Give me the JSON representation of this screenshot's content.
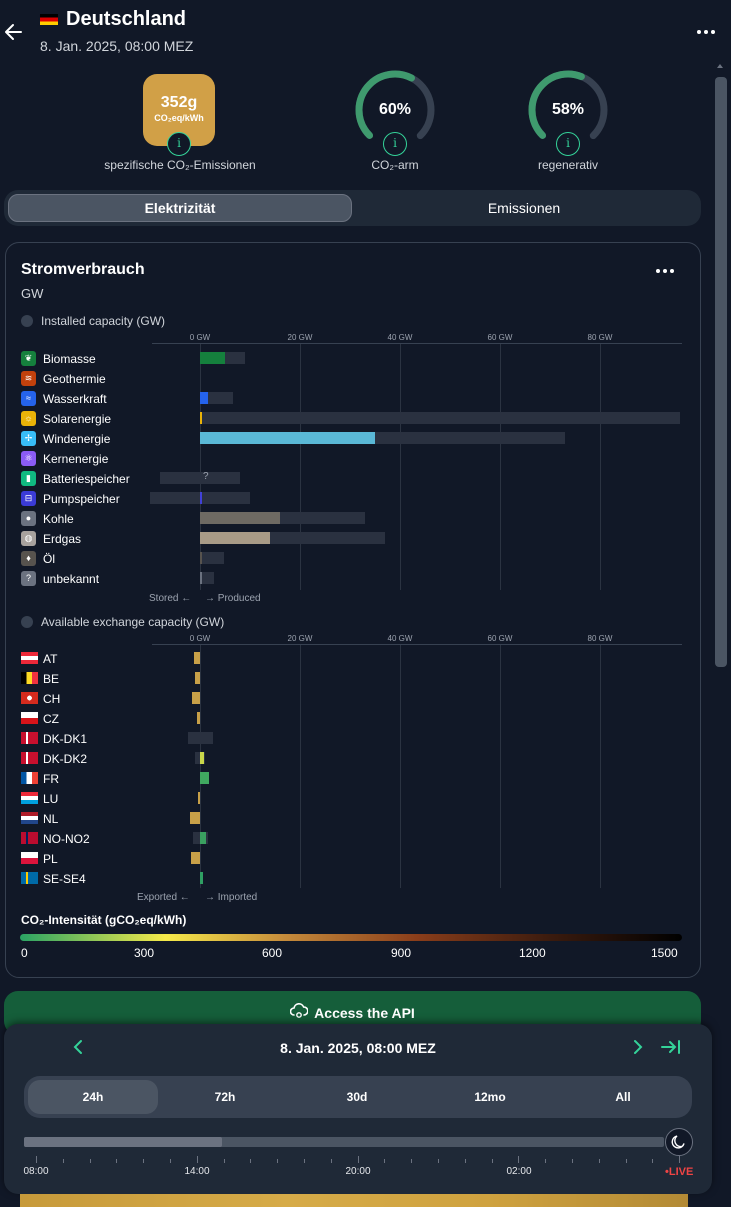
{
  "header": {
    "title": "Deutschland",
    "datetime": "8. Jan. 2025, 08:00 MEZ"
  },
  "metrics": {
    "co2_value": "352g",
    "co2_unit": "CO₂eq/kWh",
    "co2_label": "spezifische CO₂-Emissionen",
    "low_carbon_value": "60%",
    "low_carbon_fraction": 0.6,
    "low_carbon_label": "CO₂-arm",
    "renewable_value": "58%",
    "renewable_fraction": 0.58,
    "renewable_label": "regenerativ",
    "info_glyph": "i"
  },
  "tabs": [
    "Elektrizität",
    "Emissionen"
  ],
  "card": {
    "title": "Stromverbrauch",
    "unit": "GW",
    "installed_header": "Installed capacity (GW)",
    "exchange_header": "Available exchange capacity (GW)",
    "axis_ticks": [
      "0 GW",
      "20 GW",
      "40 GW",
      "60 GW",
      "80 GW"
    ],
    "stored_note": "Stored ←",
    "produced_note": "→ Produced",
    "exported_note": "Exported ←",
    "imported_note": "→ Imported",
    "unknown_mark": "?"
  },
  "chart_data": [
    {
      "type": "bar",
      "title": "Installed capacity (GW)",
      "xlim": [
        -10,
        95
      ],
      "categories": [
        "Biomasse",
        "Geothermie",
        "Wasserkraft",
        "Solarenergie",
        "Windenergie",
        "Kernenergie",
        "Batteriespeicher",
        "Pumpspeicher",
        "Kohle",
        "Erdgas",
        "Öl",
        "unbekannt"
      ],
      "icons": [
        "leaf-icon",
        "heat-icon",
        "water-icon",
        "sun-icon",
        "wind-icon",
        "atom-icon",
        "battery-icon",
        "pump-icon",
        "coal-icon",
        "gas-icon",
        "oil-icon",
        "question-icon"
      ],
      "icon_colors": [
        "#15803d",
        "#c2410c",
        "#2563eb",
        "#eab308",
        "#38bdf8",
        "#8b5cf6",
        "#10b981",
        "#3b3bd6",
        "#6b7280",
        "#a8a29e",
        "#57534e",
        "#6b7280"
      ],
      "bar_colors": [
        "#15803d",
        "#c2410c",
        "#2563eb",
        "#eab308",
        "#5ab8d6",
        "#8b5cf6",
        "#10b981",
        "#4141d8",
        "#6e6a63",
        "#a89b87",
        "#57534e",
        "#6b7280"
      ],
      "capacity_min": [
        0,
        0,
        0,
        0,
        0,
        0,
        -8,
        -10,
        0,
        0,
        0,
        0
      ],
      "capacity_max": [
        9,
        0,
        6.5,
        96,
        73,
        0,
        8,
        10,
        33,
        37,
        4.8,
        2.8
      ],
      "production": [
        5,
        0,
        1.6,
        0.4,
        35,
        0,
        0,
        0.3,
        16,
        14,
        0.2,
        0.2
      ]
    },
    {
      "type": "bar",
      "title": "Available exchange capacity (GW)",
      "xlim": [
        -10,
        95
      ],
      "categories": [
        "AT",
        "BE",
        "CH",
        "CZ",
        "DK-DK1",
        "DK-DK2",
        "FR",
        "LU",
        "NL",
        "NO-NO2",
        "PL",
        "SE-SE4"
      ],
      "exchange_min": [
        0,
        0,
        0,
        0,
        -2.5,
        -1,
        0,
        0,
        0,
        -1.5,
        0,
        0
      ],
      "exchange_max": [
        0,
        0,
        0,
        0,
        2.5,
        1,
        0,
        0,
        0,
        1.5,
        0,
        0
      ],
      "exchange": [
        -1.2,
        -1,
        -1.6,
        -0.6,
        0,
        0.8,
        1.8,
        -0.5,
        -2,
        1.2,
        -1.8,
        0.5
      ],
      "bar_colors": [
        "#c8a048",
        "#c8a048",
        "#c8a048",
        "#c8a048",
        "#c8a048",
        "#c9d64a",
        "#40a860",
        "#c8a048",
        "#c8a048",
        "#3aa060",
        "#c8a048",
        "#2f9f63"
      ]
    }
  ],
  "legend": {
    "title": "CO₂-Intensität (gCO₂eq/kWh)",
    "ticks": [
      "0",
      "300",
      "600",
      "900",
      "1200",
      "1500"
    ]
  },
  "api_button": "Access the API",
  "timeline": {
    "date": "8. Jan. 2025, 08:00 MEZ",
    "ranges": [
      "24h",
      "72h",
      "30d",
      "12mo",
      "All"
    ],
    "selected_range": "24h",
    "progress_fraction": 0.31,
    "time_labels": [
      "08:00",
      "14:00",
      "20:00",
      "02:00"
    ],
    "live_label": "•LIVE"
  }
}
